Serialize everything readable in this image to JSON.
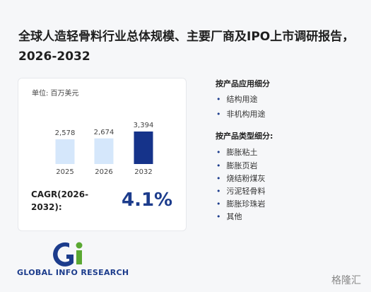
{
  "title": "全球人造轻骨料行业总体规模、主要厂商及IPO上市调研报告，2026-2032",
  "unit": "单位: 百万美元",
  "cagr": {
    "label": "CAGR(2026-2032):",
    "value": "4.1%"
  },
  "segments": [
    {
      "heading": "按产品应用细分",
      "items": [
        "结构用途",
        "非机构用途"
      ]
    },
    {
      "heading": "按产品类型细分:",
      "items": [
        "膨胀粘土",
        "膨胀页岩",
        "烧结粉煤灰",
        "污泥轻骨料",
        "膨胀珍珠岩",
        "其他"
      ]
    }
  ],
  "logo": "GLOBAL INFO RESEARCH",
  "brand": "格隆汇",
  "chart_data": {
    "type": "bar",
    "categories": [
      "2025",
      "2026",
      "2032"
    ],
    "values": [
      2578,
      2674,
      3394
    ],
    "value_labels": [
      "2,578",
      "2,674",
      "3,394"
    ],
    "colors": [
      "#d5e7fb",
      "#d5e7fb",
      "#15338a"
    ]
  }
}
